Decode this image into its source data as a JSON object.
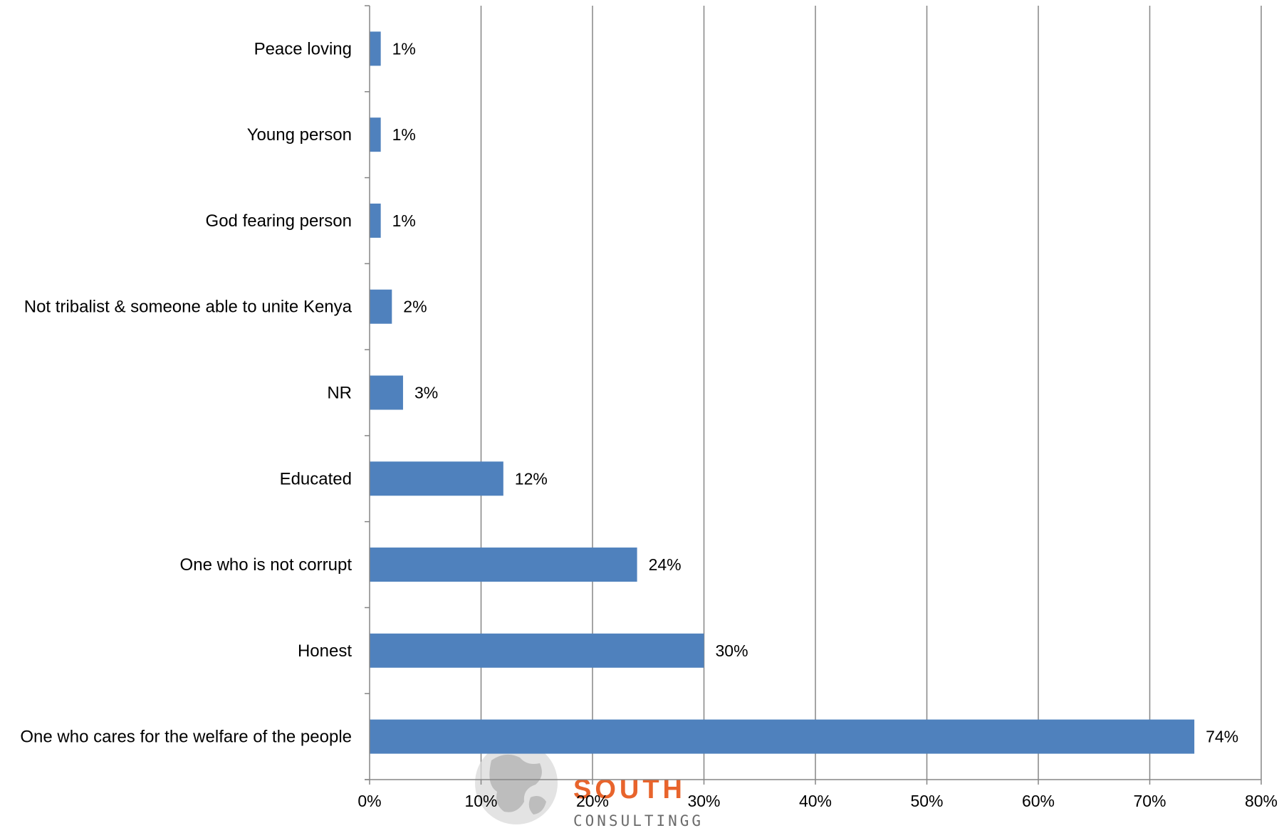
{
  "chart_data": {
    "type": "bar",
    "orientation": "horizontal",
    "categories": [
      "Peace loving",
      "Young person",
      "God fearing person",
      "Not tribalist & someone able to unite Kenya",
      "NR",
      "Educated",
      "One who is not corrupt",
      "Honest",
      "One who cares for the welfare of the people"
    ],
    "values": [
      1,
      1,
      1,
      2,
      3,
      12,
      24,
      30,
      74
    ],
    "data_labels": [
      "1%",
      "1%",
      "1%",
      "2%",
      "3%",
      "12%",
      "24%",
      "30%",
      "74%"
    ],
    "xlim": [
      0,
      80
    ],
    "xticks": [
      "0%",
      "10%",
      "20%",
      "30%",
      "40%",
      "50%",
      "60%",
      "70%",
      "80%"
    ],
    "grid": "vertical",
    "legend": "none",
    "bar_color": "#4f81bd",
    "grid_color": "#868686",
    "title": "",
    "xlabel": "",
    "ylabel": ""
  },
  "watermark": {
    "logo_text": "SOUTH",
    "logo_subtext": "CONSULTINGG",
    "accent_color": "#e8642c",
    "text_color": "#6b6b6b"
  }
}
